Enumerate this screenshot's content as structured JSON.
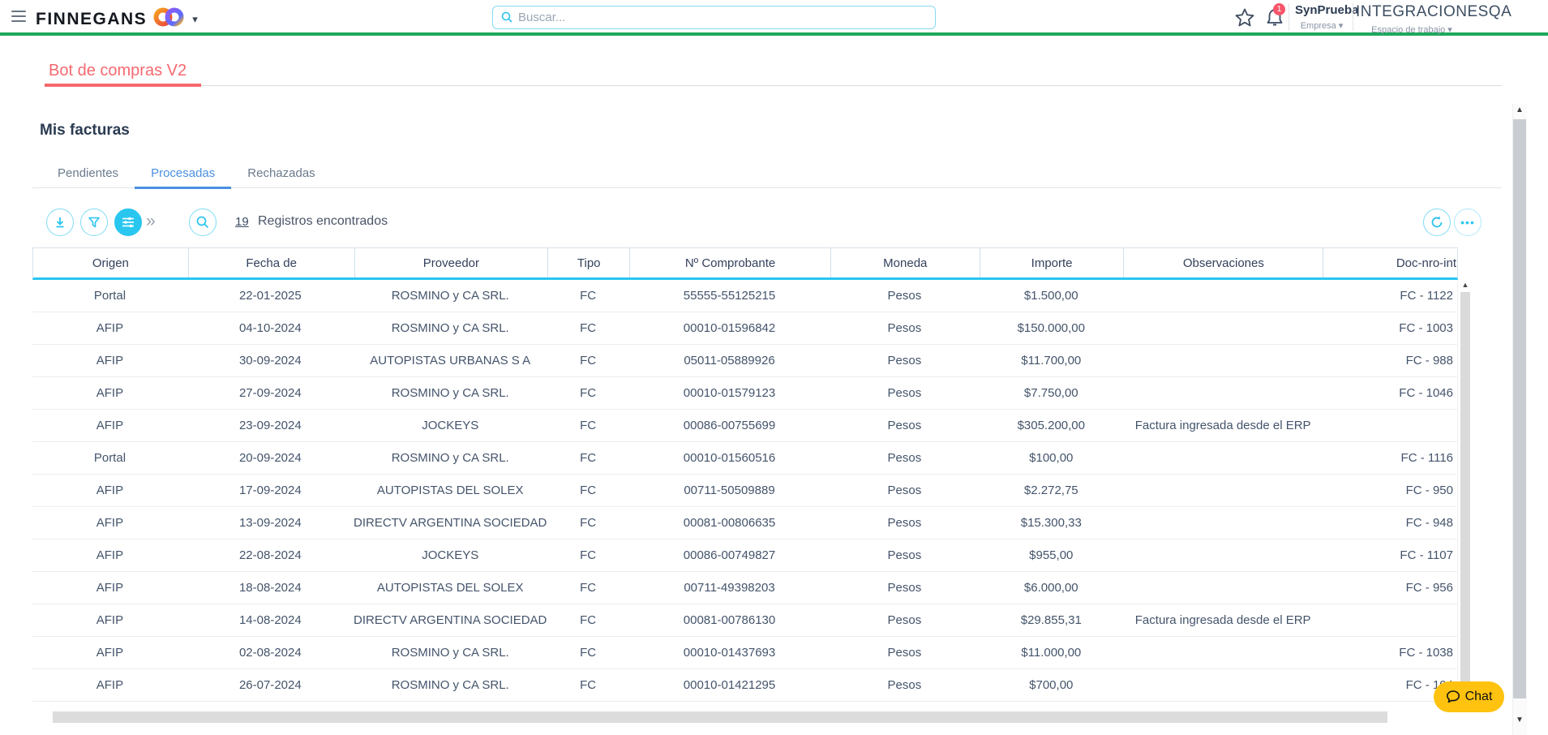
{
  "topbar": {
    "brand": "FINNEGANS",
    "search_placeholder": "Buscar...",
    "notification_count": "1",
    "company": {
      "name": "SynPrueba",
      "label": "Empresa ▾"
    },
    "workspace": {
      "name": "INTEGRACIONESQA",
      "label": "Espacio de trabajo ▾"
    },
    "brand_caret": "▾"
  },
  "workspace_tab": {
    "title": "Bot de compras V2"
  },
  "page": {
    "title": "Mis facturas",
    "tabs": [
      {
        "label": "Pendientes",
        "active": false
      },
      {
        "label": "Procesadas",
        "active": true
      },
      {
        "label": "Rechazadas",
        "active": false
      }
    ],
    "results": {
      "count": "19",
      "label": "Registros encontrados"
    }
  },
  "toolbar_icons": {
    "download": "download-arrow",
    "filter": "funnel",
    "view_settings": "sliders",
    "expand_more_tools": "»",
    "search": "magnifier",
    "refresh": "circular-arrow",
    "more_options": "•••"
  },
  "table": {
    "columns": [
      "Origen",
      "Fecha de",
      "Proveedor",
      "Tipo",
      "Nº Comprobante",
      "Moneda",
      "Importe",
      "Observaciones",
      "Doc-nro-int"
    ],
    "rows": [
      [
        "Portal",
        "22-01-2025",
        "ROSMINO y CA SRL.",
        "FC",
        "55555-55125215",
        "Pesos",
        "$1.500,00",
        "",
        "FC - 1122"
      ],
      [
        "AFIP",
        "04-10-2024",
        "ROSMINO y CA SRL.",
        "FC",
        "00010-01596842",
        "Pesos",
        "$150.000,00",
        "",
        "FC - 1003"
      ],
      [
        "AFIP",
        "30-09-2024",
        "AUTOPISTAS URBANAS S A",
        "FC",
        "05011-05889926",
        "Pesos",
        "$11.700,00",
        "",
        "FC - 988"
      ],
      [
        "AFIP",
        "27-09-2024",
        "ROSMINO y CA SRL.",
        "FC",
        "00010-01579123",
        "Pesos",
        "$7.750,00",
        "",
        "FC - 1046"
      ],
      [
        "AFIP",
        "23-09-2024",
        "JOCKEYS",
        "FC",
        "00086-00755699",
        "Pesos",
        "$305.200,00",
        "Factura ingresada desde el ERP",
        ""
      ],
      [
        "Portal",
        "20-09-2024",
        "ROSMINO y CA SRL.",
        "FC",
        "00010-01560516",
        "Pesos",
        "$100,00",
        "",
        "FC - 1116"
      ],
      [
        "AFIP",
        "17-09-2024",
        "AUTOPISTAS DEL SOLEX",
        "FC",
        "00711-50509889",
        "Pesos",
        "$2.272,75",
        "",
        "FC - 950"
      ],
      [
        "AFIP",
        "13-09-2024",
        "DIRECTV ARGENTINA SOCIEDAD",
        "FC",
        "00081-00806635",
        "Pesos",
        "$15.300,33",
        "",
        "FC - 948"
      ],
      [
        "AFIP",
        "22-08-2024",
        "JOCKEYS",
        "FC",
        "00086-00749827",
        "Pesos",
        "$955,00",
        "",
        "FC - 1107"
      ],
      [
        "AFIP",
        "18-08-2024",
        "AUTOPISTAS DEL SOLEX",
        "FC",
        "00711-49398203",
        "Pesos",
        "$6.000,00",
        "",
        "FC - 956"
      ],
      [
        "AFIP",
        "14-08-2024",
        "DIRECTV ARGENTINA SOCIEDAD",
        "FC",
        "00081-00786130",
        "Pesos",
        "$29.855,31",
        "Factura ingresada desde el ERP",
        ""
      ],
      [
        "AFIP",
        "02-08-2024",
        "ROSMINO y CA SRL.",
        "FC",
        "00010-01437693",
        "Pesos",
        "$11.000,00",
        "",
        "FC - 1038"
      ],
      [
        "AFIP",
        "26-07-2024",
        "ROSMINO y CA SRL.",
        "FC",
        "00010-01421295",
        "Pesos",
        "$700,00",
        "",
        "FC - 104"
      ]
    ]
  },
  "chat": {
    "label": "Chat"
  },
  "scrollbar_glyphs": {
    "up": "▲",
    "down": "▼"
  },
  "colors": {
    "green_accent": "#1fa85c",
    "coral_tab": "#f4696f",
    "active_tab_blue": "#4a90e2",
    "icon_cyan": "#2bc3ee",
    "icon_cyan_filled": "#29c6f0",
    "badge_red": "#f8566a",
    "chat_yellow": "#fec20f",
    "heading_navy": "#2b3b52",
    "body_text": "#44546b"
  }
}
